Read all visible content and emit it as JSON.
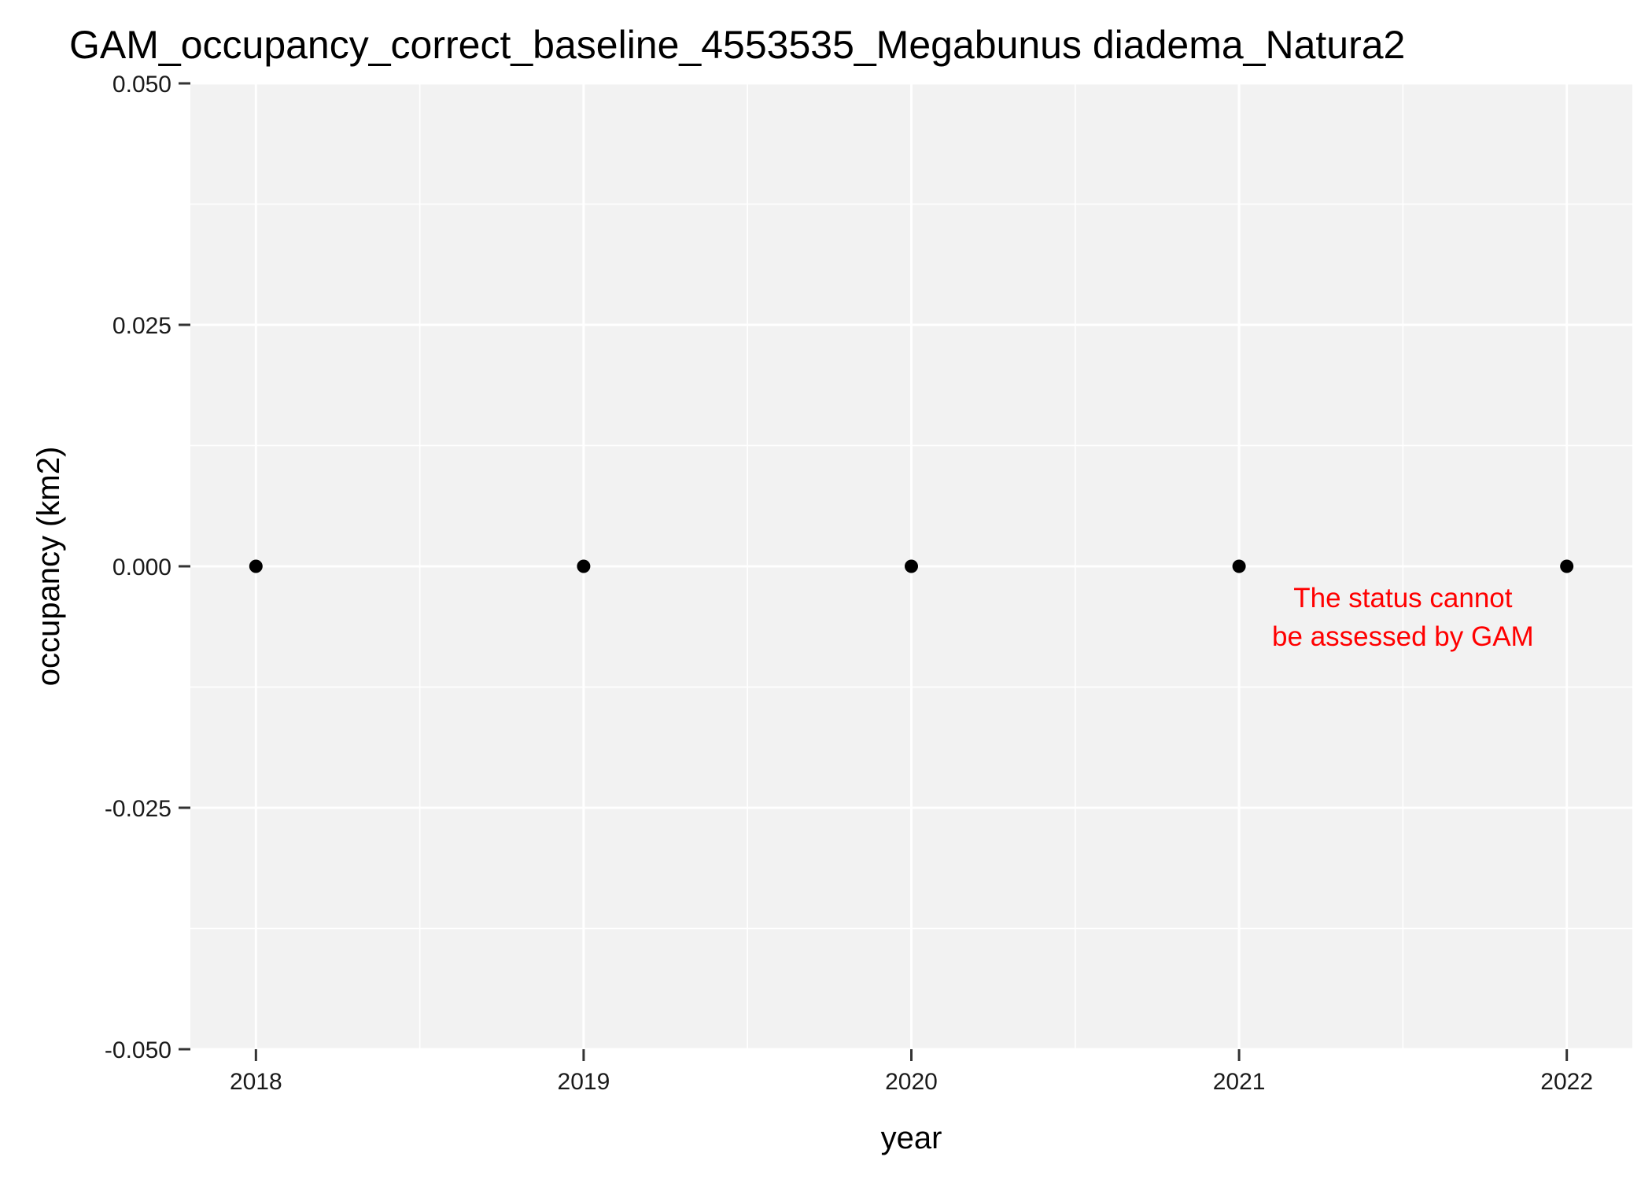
{
  "chart_data": {
    "type": "scatter",
    "title": "GAM_occupancy_correct_baseline_4553535_Megabunus diadema_Natura2",
    "xlabel": "year",
    "ylabel": "occupancy (km2)",
    "x": [
      2018,
      2019,
      2020,
      2021,
      2022
    ],
    "y": [
      0,
      0,
      0,
      0,
      0
    ],
    "xlim": [
      2017.8,
      2022.2
    ],
    "ylim": [
      -0.05,
      0.05
    ],
    "x_ticks": [
      2018,
      2019,
      2020,
      2021,
      2022
    ],
    "x_tick_labels": [
      "2018",
      "2019",
      "2020",
      "2021",
      "2022"
    ],
    "y_ticks": [
      -0.05,
      -0.025,
      0,
      0.025,
      0.05
    ],
    "y_tick_labels": [
      "-0.050",
      "-0.025",
      "0.000",
      "0.025",
      "0.050"
    ],
    "grid": true,
    "legend": "none",
    "annotation": {
      "lines": [
        "The status cannot",
        "be assessed by GAM"
      ],
      "color": "#ff0000",
      "x": 2021.5,
      "y": -0.0045
    },
    "colors": {
      "panel": "#f2f2f2",
      "grid": "#ffffff",
      "point": "#000000"
    }
  }
}
